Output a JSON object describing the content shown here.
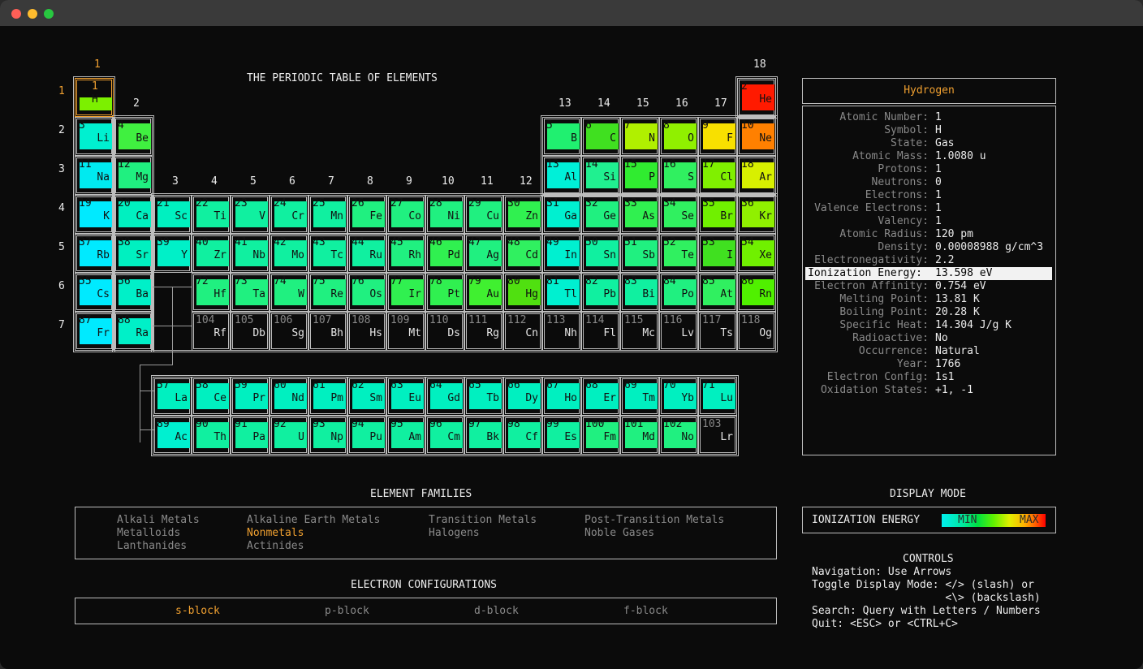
{
  "title": "THE PERIODIC TABLE OF ELEMENTS",
  "group_labels": [
    "1",
    "2",
    "3",
    "4",
    "5",
    "6",
    "7",
    "8",
    "9",
    "10",
    "11",
    "12",
    "13",
    "14",
    "15",
    "16",
    "17",
    "18"
  ],
  "period_labels": [
    "1",
    "2",
    "3",
    "4",
    "5",
    "6",
    "7"
  ],
  "elements": [
    {
      "n": "1",
      "s": "H",
      "r": 1,
      "c": 1,
      "color": "#7cf000",
      "selected": true
    },
    {
      "n": "2",
      "s": "He",
      "r": 1,
      "c": 18,
      "color": "#ff1a00"
    },
    {
      "n": "3",
      "s": "Li",
      "r": 2,
      "c": 1,
      "color": "#00f0d0"
    },
    {
      "n": "4",
      "s": "Be",
      "r": 2,
      "c": 2,
      "color": "#40f040"
    },
    {
      "n": "5",
      "s": "B",
      "r": 2,
      "c": 13,
      "color": "#20f070"
    },
    {
      "n": "6",
      "s": "C",
      "r": 2,
      "c": 14,
      "color": "#40e020"
    },
    {
      "n": "7",
      "s": "N",
      "r": 2,
      "c": 15,
      "color": "#b0f000"
    },
    {
      "n": "8",
      "s": "O",
      "r": 2,
      "c": 16,
      "color": "#90f000"
    },
    {
      "n": "9",
      "s": "F",
      "r": 2,
      "c": 17,
      "color": "#f8e000"
    },
    {
      "n": "10",
      "s": "Ne",
      "r": 2,
      "c": 18,
      "color": "#ff8000"
    },
    {
      "n": "11",
      "s": "Na",
      "r": 3,
      "c": 1,
      "color": "#00eaf0"
    },
    {
      "n": "12",
      "s": "Mg",
      "r": 3,
      "c": 2,
      "color": "#20f080"
    },
    {
      "n": "13",
      "s": "Al",
      "r": 3,
      "c": 13,
      "color": "#00f0d8"
    },
    {
      "n": "14",
      "s": "Si",
      "r": 3,
      "c": 14,
      "color": "#20f090"
    },
    {
      "n": "15",
      "s": "P",
      "r": 3,
      "c": 15,
      "color": "#30ec30"
    },
    {
      "n": "16",
      "s": "S",
      "r": 3,
      "c": 16,
      "color": "#30f060"
    },
    {
      "n": "17",
      "s": "Cl",
      "r": 3,
      "c": 17,
      "color": "#80f000"
    },
    {
      "n": "18",
      "s": "Ar",
      "r": 3,
      "c": 18,
      "color": "#d8f000"
    },
    {
      "n": "19",
      "s": "K",
      "r": 4,
      "c": 1,
      "color": "#00eaff"
    },
    {
      "n": "20",
      "s": "Ca",
      "r": 4,
      "c": 2,
      "color": "#00f0c0"
    },
    {
      "n": "21",
      "s": "Sc",
      "r": 4,
      "c": 3,
      "color": "#00f0c0"
    },
    {
      "n": "22",
      "s": "Ti",
      "r": 4,
      "c": 4,
      "color": "#10f0a0"
    },
    {
      "n": "23",
      "s": "V",
      "r": 4,
      "c": 5,
      "color": "#10f0a0"
    },
    {
      "n": "24",
      "s": "Cr",
      "r": 4,
      "c": 6,
      "color": "#10f0a0"
    },
    {
      "n": "25",
      "s": "Mn",
      "r": 4,
      "c": 7,
      "color": "#10f0a0"
    },
    {
      "n": "26",
      "s": "Fe",
      "r": 4,
      "c": 8,
      "color": "#20f080"
    },
    {
      "n": "27",
      "s": "Co",
      "r": 4,
      "c": 9,
      "color": "#20f080"
    },
    {
      "n": "28",
      "s": "Ni",
      "r": 4,
      "c": 10,
      "color": "#20f080"
    },
    {
      "n": "29",
      "s": "Cu",
      "r": 4,
      "c": 11,
      "color": "#20f080"
    },
    {
      "n": "30",
      "s": "Zn",
      "r": 4,
      "c": 12,
      "color": "#30f050"
    },
    {
      "n": "31",
      "s": "Ga",
      "r": 4,
      "c": 13,
      "color": "#00f0d0"
    },
    {
      "n": "32",
      "s": "Ge",
      "r": 4,
      "c": 14,
      "color": "#20f080"
    },
    {
      "n": "33",
      "s": "As",
      "r": 4,
      "c": 15,
      "color": "#30f050"
    },
    {
      "n": "34",
      "s": "Se",
      "r": 4,
      "c": 16,
      "color": "#30f060"
    },
    {
      "n": "35",
      "s": "Br",
      "r": 4,
      "c": 17,
      "color": "#70f000"
    },
    {
      "n": "36",
      "s": "Kr",
      "r": 4,
      "c": 18,
      "color": "#90f000"
    },
    {
      "n": "37",
      "s": "Rb",
      "r": 5,
      "c": 1,
      "color": "#00eaff"
    },
    {
      "n": "38",
      "s": "Sr",
      "r": 5,
      "c": 2,
      "color": "#00f0c0"
    },
    {
      "n": "39",
      "s": "Y",
      "r": 5,
      "c": 3,
      "color": "#00f0c8"
    },
    {
      "n": "40",
      "s": "Zr",
      "r": 5,
      "c": 4,
      "color": "#10f0a0"
    },
    {
      "n": "41",
      "s": "Nb",
      "r": 5,
      "c": 5,
      "color": "#10f0a0"
    },
    {
      "n": "42",
      "s": "Mo",
      "r": 5,
      "c": 6,
      "color": "#10f0a0"
    },
    {
      "n": "43",
      "s": "Tc",
      "r": 5,
      "c": 7,
      "color": "#10f0a0"
    },
    {
      "n": "44",
      "s": "Ru",
      "r": 5,
      "c": 8,
      "color": "#10f0a0"
    },
    {
      "n": "45",
      "s": "Rh",
      "r": 5,
      "c": 9,
      "color": "#20f080"
    },
    {
      "n": "46",
      "s": "Pd",
      "r": 5,
      "c": 10,
      "color": "#30f050"
    },
    {
      "n": "47",
      "s": "Ag",
      "r": 5,
      "c": 11,
      "color": "#20f080"
    },
    {
      "n": "48",
      "s": "Cd",
      "r": 5,
      "c": 12,
      "color": "#30f060"
    },
    {
      "n": "49",
      "s": "In",
      "r": 5,
      "c": 13,
      "color": "#00f0d0"
    },
    {
      "n": "50",
      "s": "Sn",
      "r": 5,
      "c": 14,
      "color": "#10f0a0"
    },
    {
      "n": "51",
      "s": "Sb",
      "r": 5,
      "c": 15,
      "color": "#20f080"
    },
    {
      "n": "52",
      "s": "Te",
      "r": 5,
      "c": 16,
      "color": "#30f060"
    },
    {
      "n": "53",
      "s": "I",
      "r": 5,
      "c": 17,
      "color": "#40e020"
    },
    {
      "n": "54",
      "s": "Xe",
      "r": 5,
      "c": 18,
      "color": "#70f000"
    },
    {
      "n": "55",
      "s": "Cs",
      "r": 6,
      "c": 1,
      "color": "#00eaff"
    },
    {
      "n": "56",
      "s": "Ba",
      "r": 6,
      "c": 2,
      "color": "#00f0c8"
    },
    {
      "n": "72",
      "s": "Hf",
      "r": 6,
      "c": 4,
      "color": "#20f080"
    },
    {
      "n": "73",
      "s": "Ta",
      "r": 6,
      "c": 5,
      "color": "#20f080"
    },
    {
      "n": "74",
      "s": "W",
      "r": 6,
      "c": 6,
      "color": "#20f080"
    },
    {
      "n": "75",
      "s": "Re",
      "r": 6,
      "c": 7,
      "color": "#20f080"
    },
    {
      "n": "76",
      "s": "Os",
      "r": 6,
      "c": 8,
      "color": "#20f080"
    },
    {
      "n": "77",
      "s": "Ir",
      "r": 6,
      "c": 9,
      "color": "#30f050"
    },
    {
      "n": "78",
      "s": "Pt",
      "r": 6,
      "c": 10,
      "color": "#30f050"
    },
    {
      "n": "79",
      "s": "Au",
      "r": 6,
      "c": 11,
      "color": "#40f030"
    },
    {
      "n": "80",
      "s": "Hg",
      "r": 6,
      "c": 12,
      "color": "#50e010"
    },
    {
      "n": "81",
      "s": "Tl",
      "r": 6,
      "c": 13,
      "color": "#00f0d0"
    },
    {
      "n": "82",
      "s": "Pb",
      "r": 6,
      "c": 14,
      "color": "#10f0a0"
    },
    {
      "n": "83",
      "s": "Bi",
      "r": 6,
      "c": 15,
      "color": "#10f0a0"
    },
    {
      "n": "84",
      "s": "Po",
      "r": 6,
      "c": 16,
      "color": "#20f080"
    },
    {
      "n": "85",
      "s": "At",
      "r": 6,
      "c": 17,
      "color": "#30f060"
    },
    {
      "n": "86",
      "s": "Rn",
      "r": 6,
      "c": 18,
      "color": "#50f000"
    },
    {
      "n": "87",
      "s": "Fr",
      "r": 7,
      "c": 1,
      "color": "#00eaff"
    },
    {
      "n": "88",
      "s": "Ra",
      "r": 7,
      "c": 2,
      "color": "#00f0c8"
    },
    {
      "n": "104",
      "s": "Rf",
      "r": 7,
      "c": 4,
      "empty": true
    },
    {
      "n": "105",
      "s": "Db",
      "r": 7,
      "c": 5,
      "empty": true
    },
    {
      "n": "106",
      "s": "Sg",
      "r": 7,
      "c": 6,
      "empty": true
    },
    {
      "n": "107",
      "s": "Bh",
      "r": 7,
      "c": 7,
      "empty": true
    },
    {
      "n": "108",
      "s": "Hs",
      "r": 7,
      "c": 8,
      "empty": true
    },
    {
      "n": "109",
      "s": "Mt",
      "r": 7,
      "c": 9,
      "empty": true
    },
    {
      "n": "110",
      "s": "Ds",
      "r": 7,
      "c": 10,
      "empty": true
    },
    {
      "n": "111",
      "s": "Rg",
      "r": 7,
      "c": 11,
      "empty": true
    },
    {
      "n": "112",
      "s": "Cn",
      "r": 7,
      "c": 12,
      "empty": true
    },
    {
      "n": "113",
      "s": "Nh",
      "r": 7,
      "c": 13,
      "empty": true
    },
    {
      "n": "114",
      "s": "Fl",
      "r": 7,
      "c": 14,
      "empty": true
    },
    {
      "n": "115",
      "s": "Mc",
      "r": 7,
      "c": 15,
      "empty": true
    },
    {
      "n": "116",
      "s": "Lv",
      "r": 7,
      "c": 16,
      "empty": true
    },
    {
      "n": "117",
      "s": "Ts",
      "r": 7,
      "c": 17,
      "empty": true
    },
    {
      "n": "118",
      "s": "Og",
      "r": 7,
      "c": 18,
      "empty": true
    }
  ],
  "f_block": [
    {
      "n": "57",
      "s": "La",
      "r": 1,
      "c": 1,
      "color": "#00f0c0"
    },
    {
      "n": "58",
      "s": "Ce",
      "r": 1,
      "c": 2,
      "color": "#00f0c0"
    },
    {
      "n": "59",
      "s": "Pr",
      "r": 1,
      "c": 3,
      "color": "#00f0c0"
    },
    {
      "n": "60",
      "s": "Nd",
      "r": 1,
      "c": 4,
      "color": "#00f0c0"
    },
    {
      "n": "61",
      "s": "Pm",
      "r": 1,
      "c": 5,
      "color": "#00f0c0"
    },
    {
      "n": "62",
      "s": "Sm",
      "r": 1,
      "c": 6,
      "color": "#00f0c0"
    },
    {
      "n": "63",
      "s": "Eu",
      "r": 1,
      "c": 7,
      "color": "#00f0c0"
    },
    {
      "n": "64",
      "s": "Gd",
      "r": 1,
      "c": 8,
      "color": "#00f0c0"
    },
    {
      "n": "65",
      "s": "Tb",
      "r": 1,
      "c": 9,
      "color": "#00f0c0"
    },
    {
      "n": "66",
      "s": "Dy",
      "r": 1,
      "c": 10,
      "color": "#00f0c0"
    },
    {
      "n": "67",
      "s": "Ho",
      "r": 1,
      "c": 11,
      "color": "#00f0c0"
    },
    {
      "n": "68",
      "s": "Er",
      "r": 1,
      "c": 12,
      "color": "#00f0c0"
    },
    {
      "n": "69",
      "s": "Tm",
      "r": 1,
      "c": 13,
      "color": "#00f0c0"
    },
    {
      "n": "70",
      "s": "Yb",
      "r": 1,
      "c": 14,
      "color": "#00f0c0"
    },
    {
      "n": "71",
      "s": "Lu",
      "r": 1,
      "c": 15,
      "color": "#00f0c0"
    },
    {
      "n": "89",
      "s": "Ac",
      "r": 2,
      "c": 1,
      "color": "#00f0d0"
    },
    {
      "n": "90",
      "s": "Th",
      "r": 2,
      "c": 2,
      "color": "#10f0a0"
    },
    {
      "n": "91",
      "s": "Pa",
      "r": 2,
      "c": 3,
      "color": "#10f0a0"
    },
    {
      "n": "92",
      "s": "U",
      "r": 2,
      "c": 4,
      "color": "#10f0a0"
    },
    {
      "n": "93",
      "s": "Np",
      "r": 2,
      "c": 5,
      "color": "#10f0a0"
    },
    {
      "n": "94",
      "s": "Pu",
      "r": 2,
      "c": 6,
      "color": "#10f0a0"
    },
    {
      "n": "95",
      "s": "Am",
      "r": 2,
      "c": 7,
      "color": "#10f0a0"
    },
    {
      "n": "96",
      "s": "Cm",
      "r": 2,
      "c": 8,
      "color": "#10f0a0"
    },
    {
      "n": "97",
      "s": "Bk",
      "r": 2,
      "c": 9,
      "color": "#10f0a0"
    },
    {
      "n": "98",
      "s": "Cf",
      "r": 2,
      "c": 10,
      "color": "#10f0a0"
    },
    {
      "n": "99",
      "s": "Es",
      "r": 2,
      "c": 11,
      "color": "#10f0a0"
    },
    {
      "n": "100",
      "s": "Fm",
      "r": 2,
      "c": 12,
      "color": "#20f080"
    },
    {
      "n": "101",
      "s": "Md",
      "r": 2,
      "c": 13,
      "color": "#20f080"
    },
    {
      "n": "102",
      "s": "No",
      "r": 2,
      "c": 14,
      "color": "#20f080"
    },
    {
      "n": "103",
      "s": "Lr",
      "r": 2,
      "c": 15,
      "empty": true
    }
  ],
  "details": {
    "name": "Hydrogen",
    "fields": [
      {
        "label": "Atomic Number:",
        "value": "1"
      },
      {
        "label": "Symbol:",
        "value": "H"
      },
      {
        "label": "State:",
        "value": "Gas"
      },
      {
        "label": "Atomic Mass:",
        "value": "1.0080 u"
      },
      {
        "label": "Protons:",
        "value": "1"
      },
      {
        "label": "Neutrons:",
        "value": "0"
      },
      {
        "label": "Electrons:",
        "value": "1"
      },
      {
        "label": "Valence Electrons:",
        "value": "1"
      },
      {
        "label": "Valency:",
        "value": "1"
      },
      {
        "label": "Atomic Radius:",
        "value": "120 pm"
      },
      {
        "label": "Density:",
        "value": "0.00008988 g/cm^3"
      },
      {
        "label": "Electronegativity:",
        "value": "2.2"
      },
      {
        "label": "Ionization Energy:",
        "value": "13.598 eV",
        "highlight": true
      },
      {
        "label": "Electron Affinity:",
        "value": "0.754 eV"
      },
      {
        "label": "Melting Point:",
        "value": "13.81 K"
      },
      {
        "label": "Boiling Point:",
        "value": "20.28 K"
      },
      {
        "label": "Specific Heat:",
        "value": "14.304 J/g K"
      },
      {
        "label": "Radioactive:",
        "value": "No"
      },
      {
        "label": "Occurrence:",
        "value": "Natural"
      },
      {
        "label": "Year:",
        "value": "1766"
      },
      {
        "label": "Electron Config:",
        "value": "1s1"
      },
      {
        "label": "Oxidation States:",
        "value": "+1, -1"
      }
    ]
  },
  "families": {
    "title": "ELEMENT FAMILIES",
    "items": [
      {
        "label": "Alkali Metals",
        "active": false
      },
      {
        "label": "Alkaline Earth Metals",
        "active": false
      },
      {
        "label": "Transition Metals",
        "active": false
      },
      {
        "label": "Post-Transition Metals",
        "active": false
      },
      {
        "label": "Metalloids",
        "active": false
      },
      {
        "label": "Nonmetals",
        "active": true
      },
      {
        "label": "Halogens",
        "active": false
      },
      {
        "label": "Noble Gases",
        "active": false
      },
      {
        "label": "Lanthanides",
        "active": false
      },
      {
        "label": "Actinides",
        "active": false
      }
    ]
  },
  "configs": {
    "title": "ELECTRON CONFIGURATIONS",
    "items": [
      {
        "label": "s-block",
        "active": true
      },
      {
        "label": "p-block",
        "active": false
      },
      {
        "label": "d-block",
        "active": false
      },
      {
        "label": "f-block",
        "active": false
      }
    ]
  },
  "display_mode": {
    "title": "DISPLAY MODE",
    "mode": "IONIZATION ENERGY",
    "min_label": "MIN",
    "max_label": "MAX"
  },
  "controls": {
    "title": "CONTROLS",
    "lines": [
      "Navigation: Use Arrows",
      "Toggle Display Mode: </> (slash) or",
      "                     <\\> (backslash)",
      "Search: Query with Letters / Numbers",
      "Quit: <ESC> or <CTRL+C>"
    ]
  }
}
